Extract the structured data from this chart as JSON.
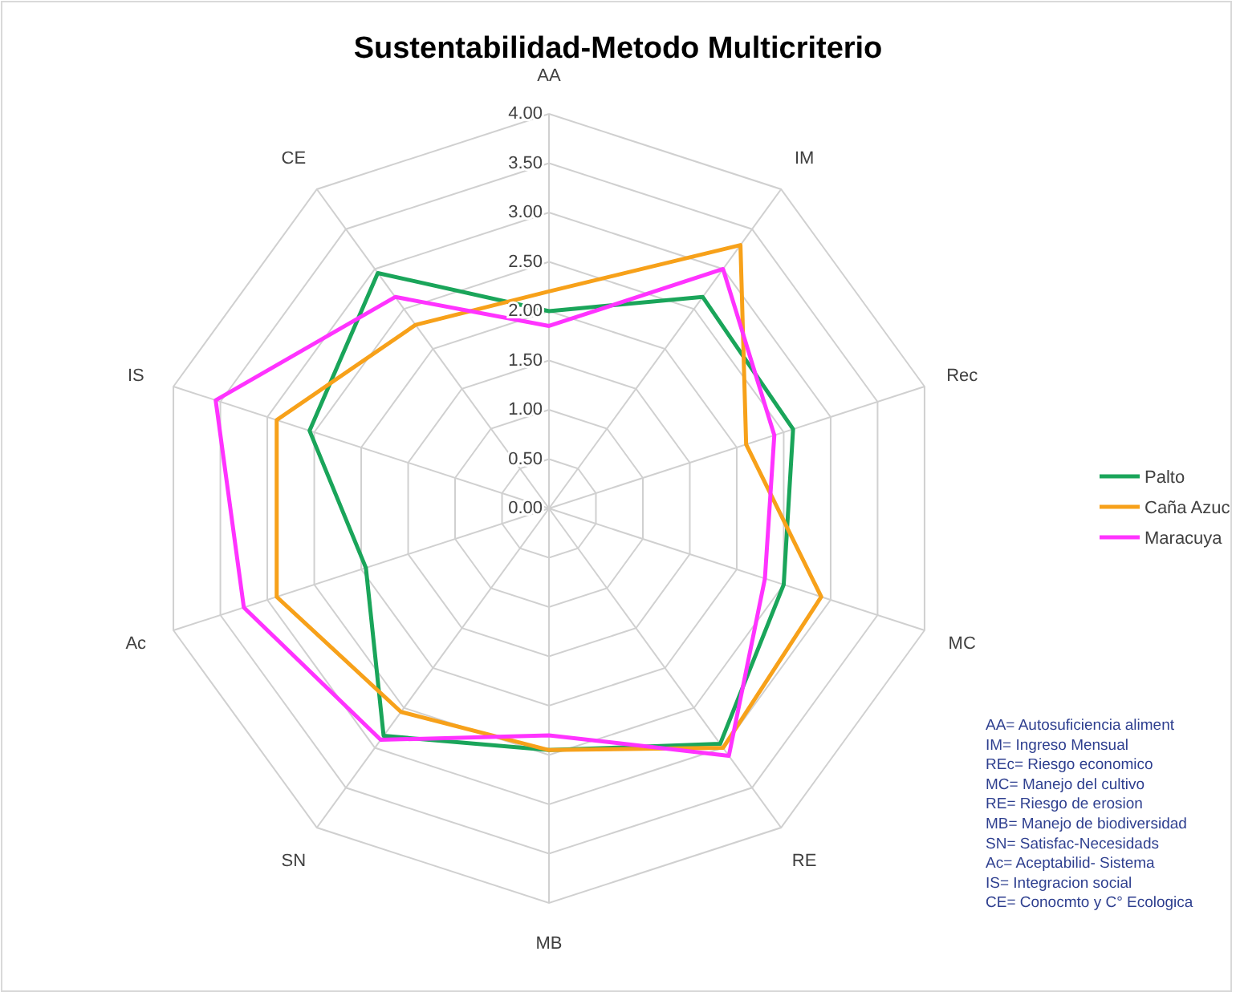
{
  "chart_data": {
    "type": "radar",
    "title": "Sustentabilidad-Metodo Multicriterio",
    "categories": [
      "AA",
      "IM",
      "Rec",
      "MC",
      "RE",
      "MB",
      "SN",
      "Ac",
      "IS",
      "CE"
    ],
    "ylim": [
      0,
      4
    ],
    "yticks": [
      {
        "value": 0,
        "label": "0.00"
      },
      {
        "value": 0.5,
        "label": "0.50"
      },
      {
        "value": 1,
        "label": "1.00"
      },
      {
        "value": 1.5,
        "label": "1.50"
      },
      {
        "value": 2,
        "label": "2.00"
      },
      {
        "value": 2.5,
        "label": "2.50"
      },
      {
        "value": 3,
        "label": "3.00"
      },
      {
        "value": 3.5,
        "label": "3.50"
      },
      {
        "value": 4,
        "label": "4.00"
      }
    ],
    "grid": true,
    "legend": "right",
    "marker": "none",
    "line_style": "solid",
    "series": [
      {
        "name": "Palto",
        "color": "#1aa55a",
        "values": [
          2.0,
          2.65,
          2.6,
          2.5,
          2.95,
          2.45,
          2.85,
          1.95,
          2.55,
          2.95
        ]
      },
      {
        "name": "Caña Azuc",
        "color": "#f7a11a",
        "values": [
          2.2,
          3.3,
          2.1,
          2.9,
          3.0,
          2.45,
          2.55,
          2.9,
          2.9,
          2.3
        ]
      },
      {
        "name": "Maracuya",
        "color": "#ff33ff",
        "values": [
          1.85,
          3.0,
          2.4,
          2.3,
          3.1,
          2.3,
          2.9,
          3.25,
          3.55,
          2.65
        ]
      }
    ],
    "annotations": [
      "AA= Autosuficiencia aliment",
      "IM= Ingreso Mensual",
      "REc= Riesgo economico",
      "MC= Manejo del  cultivo",
      "RE= Riesgo de erosion",
      "MB= Manejo de biodiversidad",
      "SN= Satisfac-Necesidads",
      "Ac= Aceptabilid- Sistema",
      "IS= Integracion  social",
      "CE= Conocmto y C° Ecologica"
    ]
  }
}
